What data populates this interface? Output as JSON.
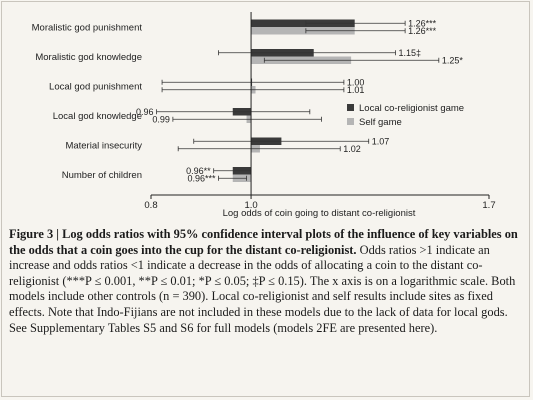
{
  "chart_data": {
    "type": "bar",
    "orientation": "horizontal",
    "x_scale": "log",
    "x_reference": 1.0,
    "xlim": [
      0.8,
      1.7
    ],
    "xticks": [
      "0.8",
      "1.0",
      "1.7"
    ],
    "tick_values": [
      0.8,
      1.0,
      1.7
    ],
    "xlabel": "Log odds of coin going to distant co-religionist",
    "categories": [
      "Moralistic god punishment",
      "Moralistic god knowledge",
      "Local god punishment",
      "Local god knowledge",
      "Material insecurity",
      "Number of children"
    ],
    "series": [
      {
        "name": "Local co-religionist game",
        "color": "#3a3a3a",
        "values": [
          1.26,
          1.15,
          1.0,
          0.96,
          1.07,
          0.96
        ],
        "ci_low": [
          1.13,
          0.93,
          0.82,
          0.81,
          0.88,
          0.92
        ],
        "ci_high": [
          1.41,
          1.38,
          1.23,
          1.14,
          1.3,
          1.0
        ],
        "labels": [
          "1.26***",
          "1.15‡",
          "1.00",
          "0.96",
          "1.07",
          "0.96**"
        ]
      },
      {
        "name": "Self game",
        "color": "#b5b5b5",
        "values": [
          1.26,
          1.25,
          1.01,
          0.99,
          1.02,
          0.96
        ],
        "ci_low": [
          1.13,
          1.03,
          0.82,
          0.84,
          0.85,
          0.93
        ],
        "ci_high": [
          1.41,
          1.52,
          1.23,
          1.17,
          1.22,
          0.99
        ],
        "labels": [
          "1.26***",
          "1.25*",
          "1.01",
          "0.99",
          "1.02",
          "0.96***"
        ]
      }
    ],
    "legend_position": "right",
    "grid": false
  },
  "caption": {
    "head": "Figure 3 | Log odds ratios with 95% confidence interval plots of the influence of key variables on the odds that a coin goes into the cup for the distant co-religionist.",
    "body": " Odds ratios >1 indicate an increase and odds ratios <1 indicate a decrease in the odds of allocating a coin to the distant co-religionist (***P ≤ 0.001, **P ≤ 0.01; *P ≤ 0.05; ‡P ≤ 0.15). The x axis is on a logarithmic scale. Both models include other controls (n = 390). Local co-religionist and self results include sites as fixed effects. Note that Indo-Fijians are not included in these models due to the lack of data for local gods. See Supplementary Tables S5 and S6 for full models (models 2FE are presented here)."
  }
}
